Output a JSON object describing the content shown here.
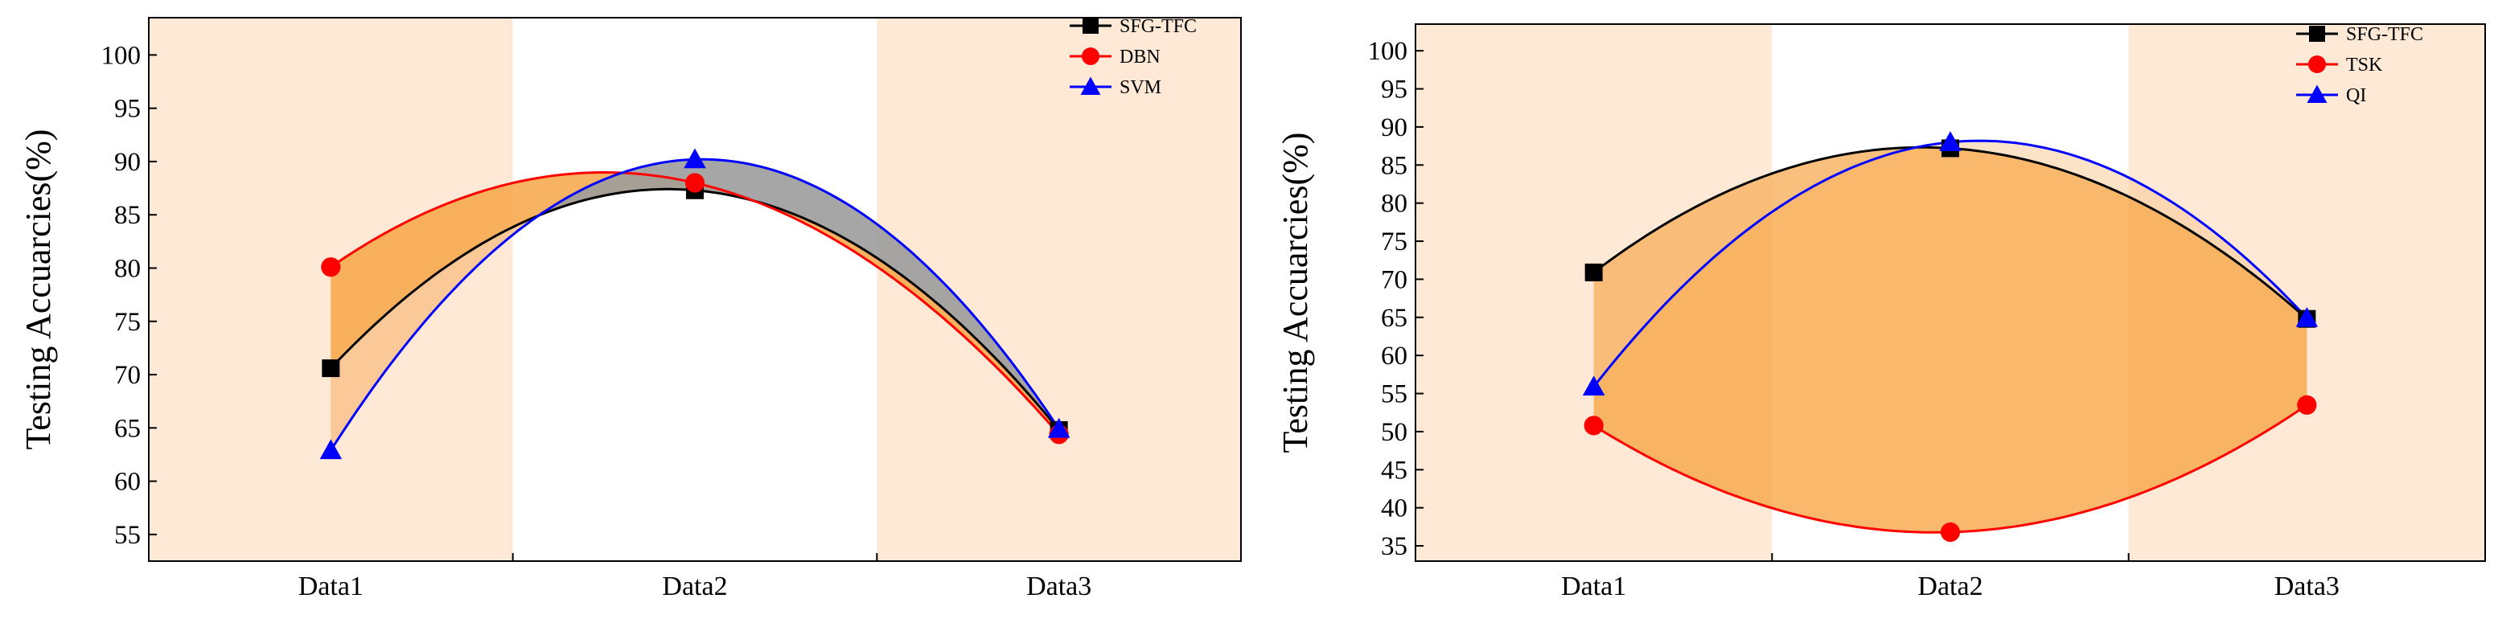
{
  "chart_data": [
    {
      "type": "line",
      "title": "",
      "xlabel": "",
      "ylabel": "Testing Accuarcies(%)",
      "categories": [
        "Data1",
        "Data2",
        "Data3"
      ],
      "ylim": [
        52.5,
        103.5
      ],
      "yticks": [
        55,
        60,
        65,
        70,
        75,
        80,
        85,
        90,
        95,
        100
      ],
      "grid": false,
      "legend_position": "top-right",
      "background_bands": [
        "#fde9d6",
        "#ffffff",
        "#fde9d6"
      ],
      "series": [
        {
          "name": "SFG-TFC",
          "values": [
            70.6,
            87.3,
            64.8
          ],
          "color": "#000000",
          "marker": "square"
        },
        {
          "name": "DBN",
          "values": [
            80.1,
            88.0,
            64.4
          ],
          "color": "#ff0000",
          "marker": "circle"
        },
        {
          "name": "SVM",
          "values": [
            62.9,
            90.2,
            64.9
          ],
          "color": "#0000ff",
          "marker": "triangle"
        }
      ],
      "fills": [
        {
          "from": "SFG-TFC",
          "to": "DBN",
          "color": "#f7a646",
          "opacity": 0.85
        },
        {
          "from": "SFG-TFC",
          "to": "SVM",
          "color": "#fac590",
          "opacity": 0.9,
          "upper_color": "#9c9c9c"
        }
      ]
    },
    {
      "type": "line",
      "title": "",
      "xlabel": "",
      "ylabel": "Testing Accuarcies(%)",
      "categories": [
        "Data1",
        "Data2",
        "Data3"
      ],
      "ylim": [
        33,
        103.5
      ],
      "yticks": [
        35,
        40,
        45,
        50,
        55,
        60,
        65,
        70,
        75,
        80,
        85,
        90,
        95,
        100
      ],
      "grid": false,
      "legend_position": "top-right",
      "background_bands": [
        "#fde9d6",
        "#ffffff",
        "#fde9d6"
      ],
      "series": [
        {
          "name": "SFG-TFC",
          "values": [
            70.9,
            87.2,
            64.8
          ],
          "color": "#000000",
          "marker": "square"
        },
        {
          "name": "TSK",
          "values": [
            50.8,
            36.8,
            53.5
          ],
          "color": "#ff0000",
          "marker": "circle"
        },
        {
          "name": "QI",
          "values": [
            55.9,
            88.0,
            64.9
          ],
          "color": "#0000ff",
          "marker": "triangle"
        }
      ],
      "fills": [
        {
          "from": "SFG-TFC",
          "to": "TSK",
          "color": "#f7a646",
          "opacity": 0.8
        },
        {
          "from": "SFG-TFC",
          "to": "QI",
          "color": "#fac590",
          "opacity": 0.5
        }
      ]
    }
  ]
}
